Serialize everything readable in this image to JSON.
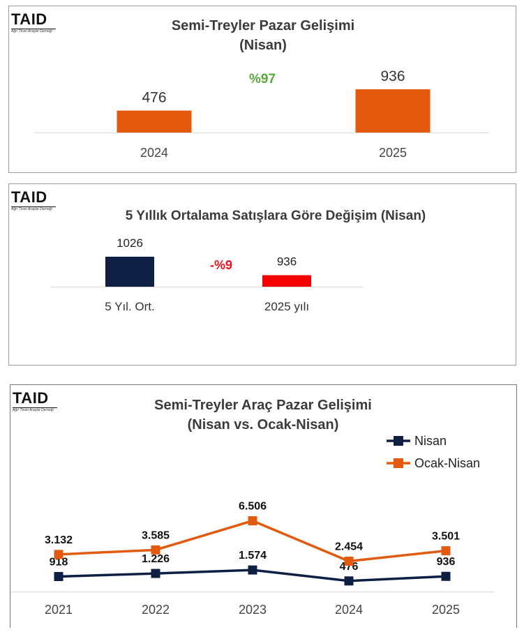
{
  "logo": {
    "text": "TAID",
    "subtitle": "Ağır Ticari Araçlar Derneği"
  },
  "panels": [
    {
      "title_line1": "Semi-Treyler Pazar Gelişimi",
      "title_line2": "(Nisan)",
      "change_label": "%97"
    },
    {
      "title_line1": "5 Yıllık Ortalama Satışlara Göre Değişim (Nisan)",
      "change_label": "-%9"
    },
    {
      "title_line1": "Semi-Treyler Araç Pazar Gelişimi",
      "title_line2": "(Nisan vs. Ocak-Nisan)"
    }
  ],
  "chart_data": [
    {
      "type": "bar",
      "title": "Semi-Treyler Pazar Gelişimi (Nisan)",
      "categories": [
        "2024",
        "2025"
      ],
      "values": [
        476,
        936
      ],
      "value_labels": [
        "476",
        "936"
      ],
      "colors": [
        "#e35a0e",
        "#e35a0e"
      ],
      "annotation": "%97",
      "annotation_color": "#5aa83c",
      "ylim": [
        0,
        1000
      ],
      "grid": false
    },
    {
      "type": "bar",
      "title": "5 Yıllık Ortalama Satışlara Göre Değişim (Nisan)",
      "categories": [
        "5 Yıl. Ort.",
        "2025 yılı"
      ],
      "values": [
        1026,
        936
      ],
      "value_labels": [
        "1026",
        "936"
      ],
      "colors": [
        "#0e1f44",
        "#f50000"
      ],
      "annotation": "-%9",
      "annotation_color": "#e8101a",
      "grid": false
    },
    {
      "type": "line",
      "title": "Semi-Treyler Araç Pazar Gelişimi (Nisan vs. Ocak-Nisan)",
      "categories": [
        "2021",
        "2022",
        "2023",
        "2024",
        "2025"
      ],
      "series": [
        {
          "name": "Nisan",
          "values": [
            918,
            1226,
            1574,
            476,
            936
          ],
          "labels": [
            "918",
            "1.226",
            "1.574",
            "476",
            "936"
          ],
          "color": "#0e1f44"
        },
        {
          "name": "Ocak-Nisan",
          "values": [
            3132,
            3585,
            6506,
            2454,
            3501
          ],
          "labels": [
            "3.132",
            "3.585",
            "6.506",
            "2.454",
            "3.501"
          ],
          "color": "#e35a0e"
        }
      ],
      "ylim": [
        0,
        7000
      ],
      "legend": "top-right",
      "grid": false
    }
  ]
}
